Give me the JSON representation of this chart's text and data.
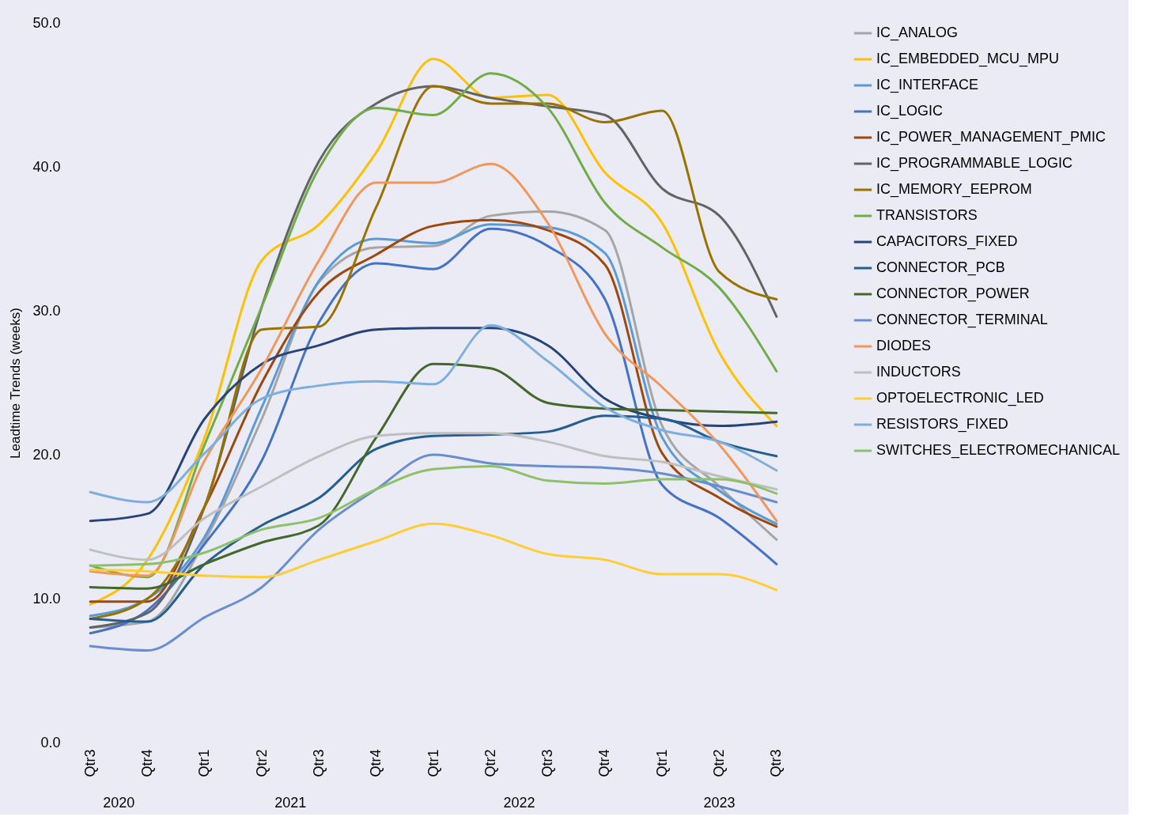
{
  "chart_data": {
    "type": "line",
    "ylabel": "Leadtime Trends (weeks)",
    "categories": [
      "Qtr3",
      "Qtr4",
      "Qtr1",
      "Qtr2",
      "Qtr3",
      "Qtr4",
      "Qtr1",
      "Qtr2",
      "Qtr3",
      "Qtr4",
      "Qtr1",
      "Qtr2",
      "Qtr3"
    ],
    "annotations": [
      "2020",
      "2021",
      "2022",
      "2023"
    ],
    "ylim": [
      0,
      50
    ],
    "yticks": [
      {
        "value": 0,
        "label": "0.0"
      },
      {
        "value": 10,
        "label": "10.0"
      },
      {
        "value": 20,
        "label": "20.0"
      },
      {
        "value": 30,
        "label": "30.0"
      },
      {
        "value": 40,
        "label": "40.0"
      },
      {
        "value": 50,
        "label": "50.0"
      }
    ],
    "grid": false,
    "legend": "right",
    "marker": "none",
    "line_style": "solid",
    "series": [
      {
        "name": "IC_ANALOG",
        "color": "#a5a5a5",
        "values": [
          8.0,
          8.4,
          14,
          22.5,
          32,
          34.4,
          34.5,
          36.6,
          36.9,
          35.6,
          22,
          17.8,
          14.1
        ]
      },
      {
        "name": "IC_EMBEDDED_MCU_MPU",
        "color": "#ffc000",
        "values": [
          9.6,
          12.7,
          21.2,
          33.5,
          36,
          41,
          47.5,
          44.8,
          45,
          39.6,
          36.1,
          27.1,
          22
        ]
      },
      {
        "name": "IC_INTERFACE",
        "color": "#5b9bd5",
        "values": [
          8.8,
          10,
          14.3,
          23.3,
          32.1,
          35,
          34.7,
          36,
          35.8,
          34,
          21.2,
          17.5,
          15.2
        ]
      },
      {
        "name": "IC_LOGIC",
        "color": "#4472c4",
        "values": [
          7.6,
          9.2,
          13.8,
          19.6,
          29.2,
          33.3,
          32.9,
          35.7,
          34.5,
          30.8,
          17.9,
          15.6,
          12.4
        ]
      },
      {
        "name": "IC_POWER_MANAGEMENT_PMIC",
        "color": "#9e480e",
        "values": [
          9.8,
          9.8,
          16.4,
          25,
          31.3,
          33.9,
          35.9,
          36.3,
          35.6,
          33.2,
          20.1,
          17,
          15
        ]
      },
      {
        "name": "IC_PROGRAMMABLE_LOGIC",
        "color": "#636363",
        "values": [
          8.0,
          9,
          16.4,
          30.3,
          40.4,
          44.4,
          45.6,
          44.8,
          44.2,
          43.6,
          38.5,
          36.6,
          29.6
        ]
      },
      {
        "name": "IC_MEMORY_EEPROM",
        "color": "#997300",
        "values": [
          8.6,
          10,
          16.4,
          28.7,
          28.9,
          37.2,
          45.6,
          44.4,
          44.4,
          43.1,
          43.9,
          32.7,
          30.8
        ]
      },
      {
        "name": "TRANSISTORS",
        "color": "#70ad47",
        "values": [
          12.3,
          11.5,
          20.7,
          30.3,
          39.9,
          44.1,
          43.6,
          46.5,
          44.1,
          37.5,
          34.4,
          31.6,
          25.8
        ]
      },
      {
        "name": "CAPACITORS_FIXED",
        "color": "#264478",
        "values": [
          15.4,
          15.9,
          22.5,
          26.3,
          27.6,
          28.7,
          28.8,
          28.8,
          27.6,
          23.9,
          22.5,
          22,
          22.3
        ]
      },
      {
        "name": "CONNECTOR_PCB",
        "color": "#255e91",
        "values": [
          8.6,
          8.4,
          12.4,
          15.1,
          17,
          20.4,
          21.3,
          21.4,
          21.6,
          22.7,
          22.5,
          20.9,
          19.9
        ]
      },
      {
        "name": "CONNECTOR_POWER",
        "color": "#43682b",
        "values": [
          10.8,
          10.7,
          12.4,
          13.9,
          15.1,
          21.2,
          26.3,
          26,
          23.6,
          23.2,
          23.1,
          23,
          22.9
        ]
      },
      {
        "name": "CONNECTOR_TERMINAL",
        "color": "#698ed0",
        "values": [
          6.7,
          6.4,
          8.7,
          10.8,
          14.8,
          17.6,
          20,
          19.4,
          19.2,
          19.1,
          18.7,
          17.8,
          16.7
        ]
      },
      {
        "name": "DIODES",
        "color": "#f1975a",
        "values": [
          11.9,
          11.6,
          19.6,
          26,
          33.5,
          38.9,
          38.9,
          40.2,
          36.1,
          28.4,
          24.7,
          20.7,
          15.4
        ]
      },
      {
        "name": "INDUCTORS",
        "color": "#bfbfbf",
        "values": [
          13.4,
          12.7,
          15.6,
          17.8,
          19.9,
          21.3,
          21.5,
          21.5,
          20.9,
          19.9,
          19.5,
          18.5,
          17.6
        ]
      },
      {
        "name": "OPTOELECTRONIC_LED",
        "color": "#ffcd33",
        "values": [
          12,
          11.9,
          11.6,
          11.5,
          12.7,
          14,
          15.2,
          14.4,
          13.1,
          12.7,
          11.7,
          11.7,
          10.6
        ]
      },
      {
        "name": "RESISTORS_FIXED",
        "color": "#7cafdd",
        "values": [
          17.4,
          16.7,
          20.1,
          23.9,
          24.8,
          25.1,
          24.9,
          29,
          26.5,
          23.3,
          21.7,
          20.9,
          18.9
        ]
      },
      {
        "name": "SWITCHES_ELECTROMECHANICAL",
        "color": "#8cc168",
        "values": [
          12.3,
          12.4,
          13.2,
          14.8,
          15.6,
          17.6,
          19,
          19.2,
          18.2,
          18,
          18.3,
          18.3,
          17.3
        ]
      }
    ]
  }
}
